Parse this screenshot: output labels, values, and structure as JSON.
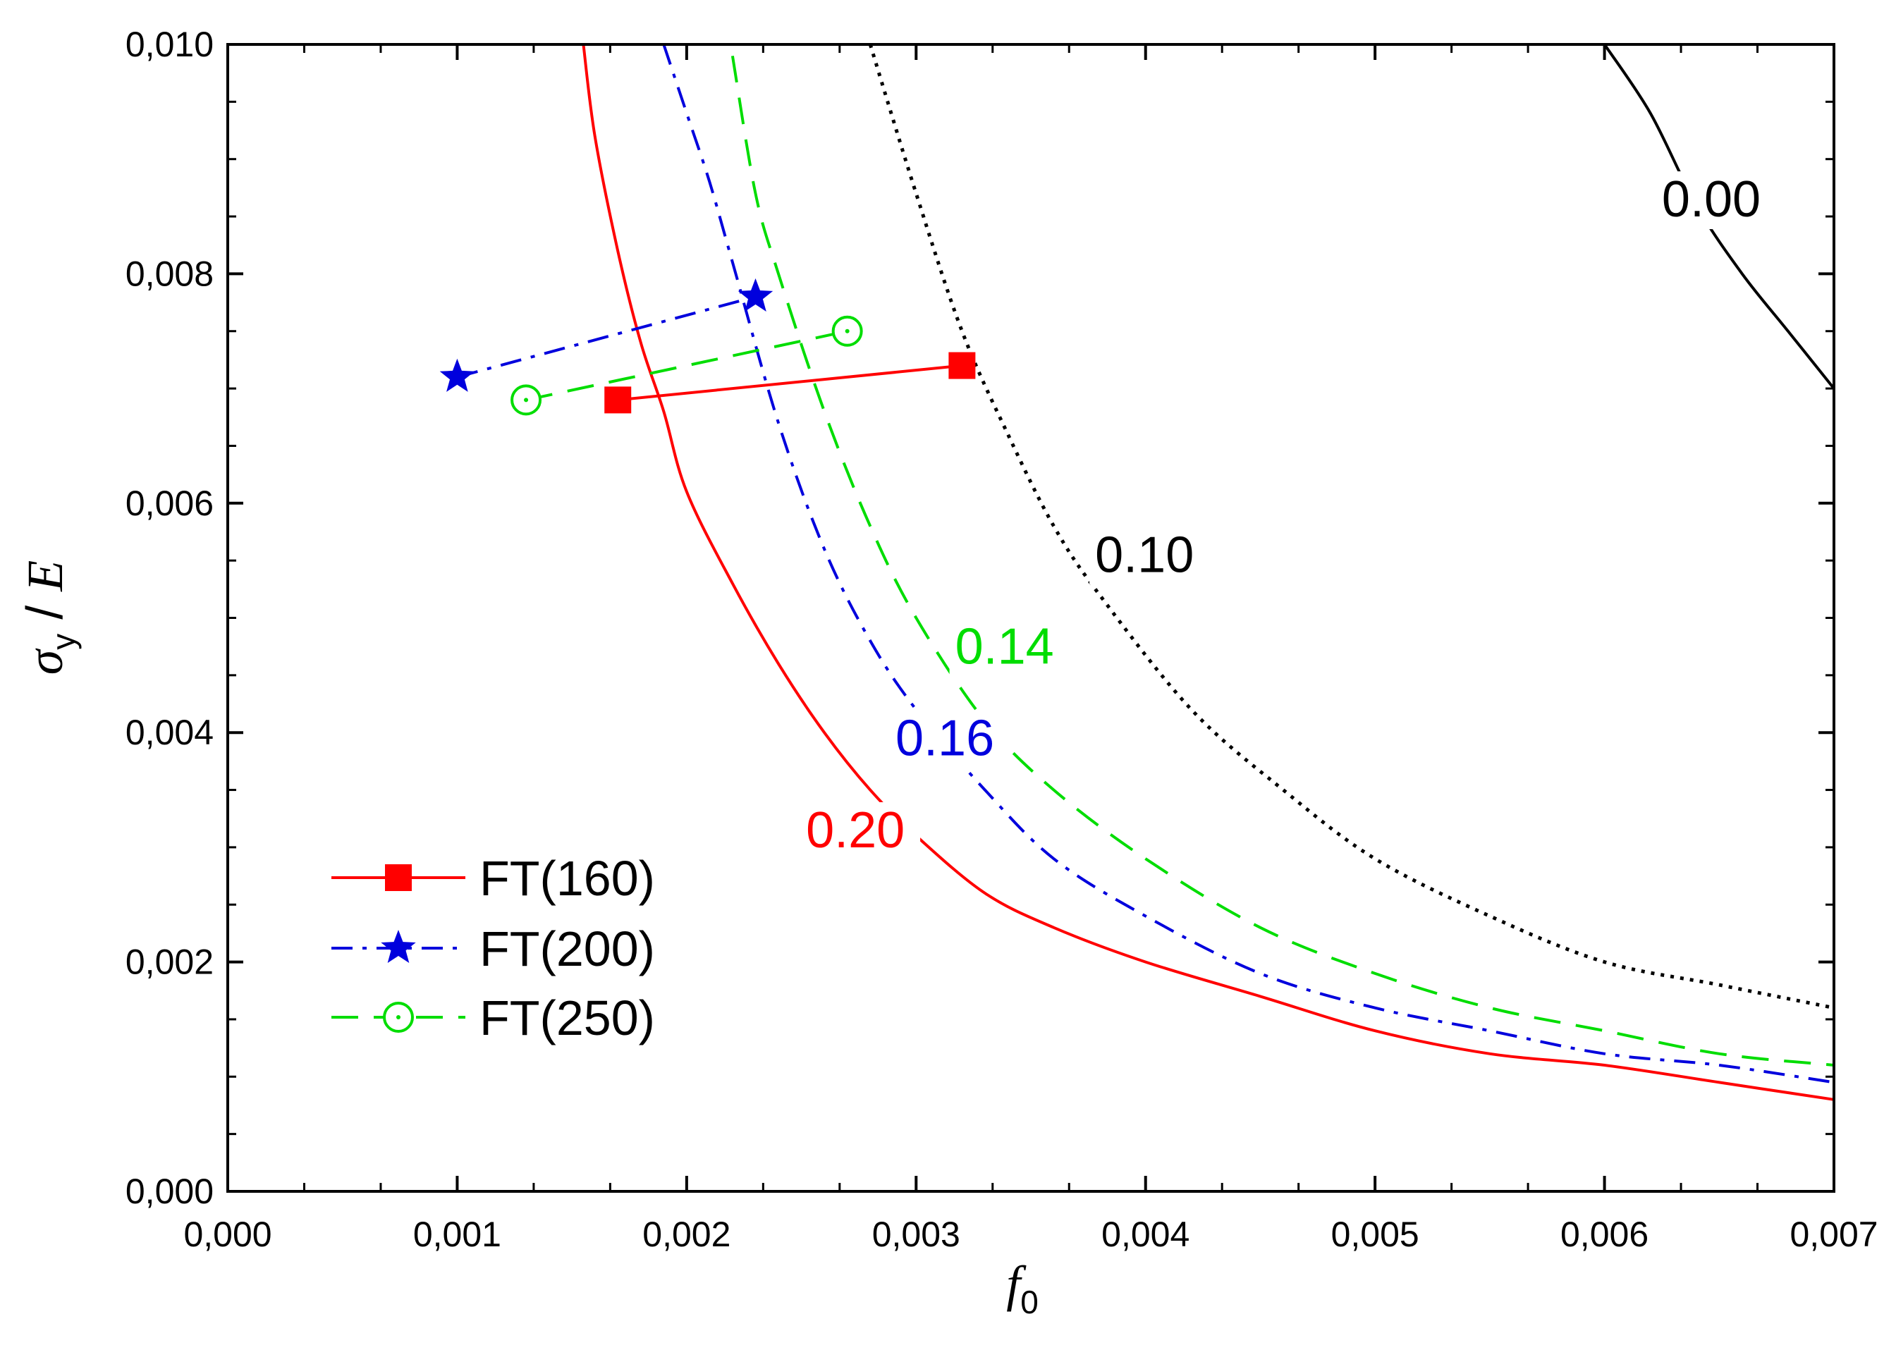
{
  "chart_data": {
    "type": "line",
    "xlabel": {
      "symbol": "f",
      "subscript": "0"
    },
    "ylabel": {
      "symbol": "σ",
      "subscript": "y",
      "rest": " / ",
      "tail": "E"
    },
    "xlim": [
      0,
      0.007
    ],
    "ylim": [
      0,
      0.01
    ],
    "x_major_ticks": [
      0,
      0.001,
      0.002,
      0.003,
      0.004,
      0.005,
      0.006,
      0.007
    ],
    "x_tick_labels": [
      "0,000",
      "0,001",
      "0,002",
      "0,003",
      "0,004",
      "0,005",
      "0,006",
      "0,007"
    ],
    "y_major_ticks": [
      0,
      0.002,
      0.004,
      0.006,
      0.008,
      0.01
    ],
    "y_tick_labels": [
      "0,000",
      "0,002",
      "0,004",
      "0,006",
      "0,008",
      "0,010"
    ],
    "grid": false,
    "legend_position": "bottom-left",
    "contours": [
      {
        "label": "0.00",
        "color": "#000000",
        "dash": "solid",
        "points": [
          [
            0.006,
            0.01
          ],
          [
            0.0062,
            0.0094
          ],
          [
            0.0064,
            0.0086
          ],
          [
            0.0066,
            0.008
          ],
          [
            0.0068,
            0.0075
          ],
          [
            0.007,
            0.007
          ]
        ],
        "label_pos": [
          0.00625,
          0.0085
        ]
      },
      {
        "label": "0.10",
        "color": "#000000",
        "dash": "dotted",
        "points": [
          [
            0.0028,
            0.01
          ],
          [
            0.003,
            0.0087
          ],
          [
            0.0032,
            0.0075
          ],
          [
            0.0034,
            0.0066
          ],
          [
            0.0036,
            0.0058
          ],
          [
            0.0038,
            0.0052
          ],
          [
            0.0042,
            0.0042
          ],
          [
            0.0046,
            0.0035
          ],
          [
            0.005,
            0.0029
          ],
          [
            0.0055,
            0.0024
          ],
          [
            0.006,
            0.002
          ],
          [
            0.0065,
            0.0018
          ],
          [
            0.007,
            0.0016
          ]
        ],
        "label_pos": [
          0.00378,
          0.0054
        ]
      },
      {
        "label": "0.14",
        "color": "#00dd00",
        "dash": "dashed",
        "points": [
          [
            0.0022,
            0.0099
          ],
          [
            0.0023,
            0.0087
          ],
          [
            0.0024,
            0.008
          ],
          [
            0.0026,
            0.0068
          ],
          [
            0.0028,
            0.0058
          ],
          [
            0.003,
            0.005
          ],
          [
            0.0033,
            0.0041
          ],
          [
            0.0036,
            0.0035
          ],
          [
            0.004,
            0.0029
          ],
          [
            0.0045,
            0.0023
          ],
          [
            0.005,
            0.0019
          ],
          [
            0.0055,
            0.0016
          ],
          [
            0.006,
            0.0014
          ],
          [
            0.0065,
            0.0012
          ],
          [
            0.007,
            0.0011
          ]
        ],
        "label_pos": [
          0.00317,
          0.0046
        ]
      },
      {
        "label": "0.16",
        "color": "#0000dd",
        "dash": "dashdot",
        "points": [
          [
            0.0019,
            0.01
          ],
          [
            0.002,
            0.0094
          ],
          [
            0.0021,
            0.0088
          ],
          [
            0.0022,
            0.0081
          ],
          [
            0.0024,
            0.0067
          ],
          [
            0.0026,
            0.0056
          ],
          [
            0.0028,
            0.0048
          ],
          [
            0.003,
            0.0042
          ],
          [
            0.0033,
            0.0035
          ],
          [
            0.0036,
            0.0029
          ],
          [
            0.004,
            0.0024
          ],
          [
            0.0045,
            0.0019
          ],
          [
            0.005,
            0.0016
          ],
          [
            0.0055,
            0.0014
          ],
          [
            0.006,
            0.0012
          ],
          [
            0.0065,
            0.0011
          ],
          [
            0.007,
            0.00095
          ]
        ],
        "label_pos": [
          0.00291,
          0.0038
        ]
      },
      {
        "label": "0.20",
        "color": "#ff0000",
        "dash": "solid",
        "points": [
          [
            0.00155,
            0.01
          ],
          [
            0.0016,
            0.0092
          ],
          [
            0.0017,
            0.0082
          ],
          [
            0.0018,
            0.0074
          ],
          [
            0.0019,
            0.0068
          ],
          [
            0.002,
            0.0061
          ],
          [
            0.0022,
            0.0053
          ],
          [
            0.0024,
            0.0046
          ],
          [
            0.0026,
            0.004
          ],
          [
            0.0028,
            0.0035
          ],
          [
            0.003,
            0.0031
          ],
          [
            0.0033,
            0.0026
          ],
          [
            0.0036,
            0.0023
          ],
          [
            0.004,
            0.002
          ],
          [
            0.0045,
            0.0017
          ],
          [
            0.005,
            0.0014
          ],
          [
            0.0055,
            0.0012
          ],
          [
            0.006,
            0.0011
          ],
          [
            0.0065,
            0.00095
          ],
          [
            0.007,
            0.0008
          ]
        ],
        "label_pos": [
          0.00252,
          0.003
        ]
      }
    ],
    "series": [
      {
        "name": "FT(160)",
        "color": "#ff0000",
        "marker": "square",
        "dash": "solid",
        "points": [
          [
            0.0017,
            0.0069
          ],
          [
            0.0032,
            0.0072
          ]
        ]
      },
      {
        "name": "FT(200)",
        "color": "#0000dd",
        "marker": "star",
        "dash": "dashdot",
        "points": [
          [
            0.001,
            0.0071
          ],
          [
            0.0023,
            0.0078
          ]
        ]
      },
      {
        "name": "FT(250)",
        "color": "#00dd00",
        "marker": "circle-dot",
        "dash": "dashed",
        "points": [
          [
            0.0013,
            0.0069
          ],
          [
            0.0027,
            0.0075
          ]
        ]
      }
    ]
  }
}
